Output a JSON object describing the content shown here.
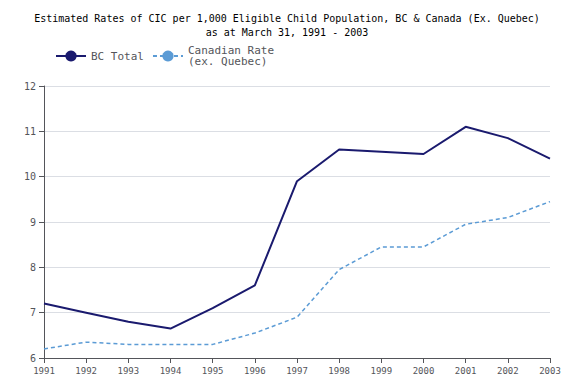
{
  "chart_data": {
    "type": "line",
    "title": "Estimated Rates of CIC per 1,000 Eligible Child Population, BC & Canada (Ex. Quebec)\nas at March 31, 1991 - 2003",
    "x": [
      1991,
      1992,
      1993,
      1994,
      1995,
      1996,
      1997,
      1998,
      1999,
      2000,
      2001,
      2002,
      2003
    ],
    "xlim": [
      1991,
      2003
    ],
    "xticks": [
      1991,
      1992,
      1993,
      1994,
      1995,
      1996,
      1997,
      1998,
      1999,
      2000,
      2001,
      2002,
      2003
    ],
    "series": [
      {
        "name": "BC Total",
        "color": "#1a1a6e",
        "line_style": "solid",
        "values": [
          7.2,
          7.0,
          6.8,
          6.65,
          7.1,
          7.6,
          9.9,
          10.6,
          10.55,
          10.5,
          11.1,
          10.85,
          10.4
        ]
      },
      {
        "name": "Canadian Rate\n(ex. Quebec)",
        "color": "#5b9bd5",
        "line_style": "dashed",
        "values": [
          6.2,
          6.35,
          6.3,
          6.3,
          6.3,
          6.55,
          6.9,
          7.95,
          8.45,
          8.45,
          8.95,
          9.1,
          9.45
        ]
      }
    ],
    "ylim": [
      6,
      12
    ],
    "yticks": [
      6,
      7,
      8,
      9,
      10,
      11,
      12
    ],
    "grid": true,
    "legend": "upper left"
  }
}
